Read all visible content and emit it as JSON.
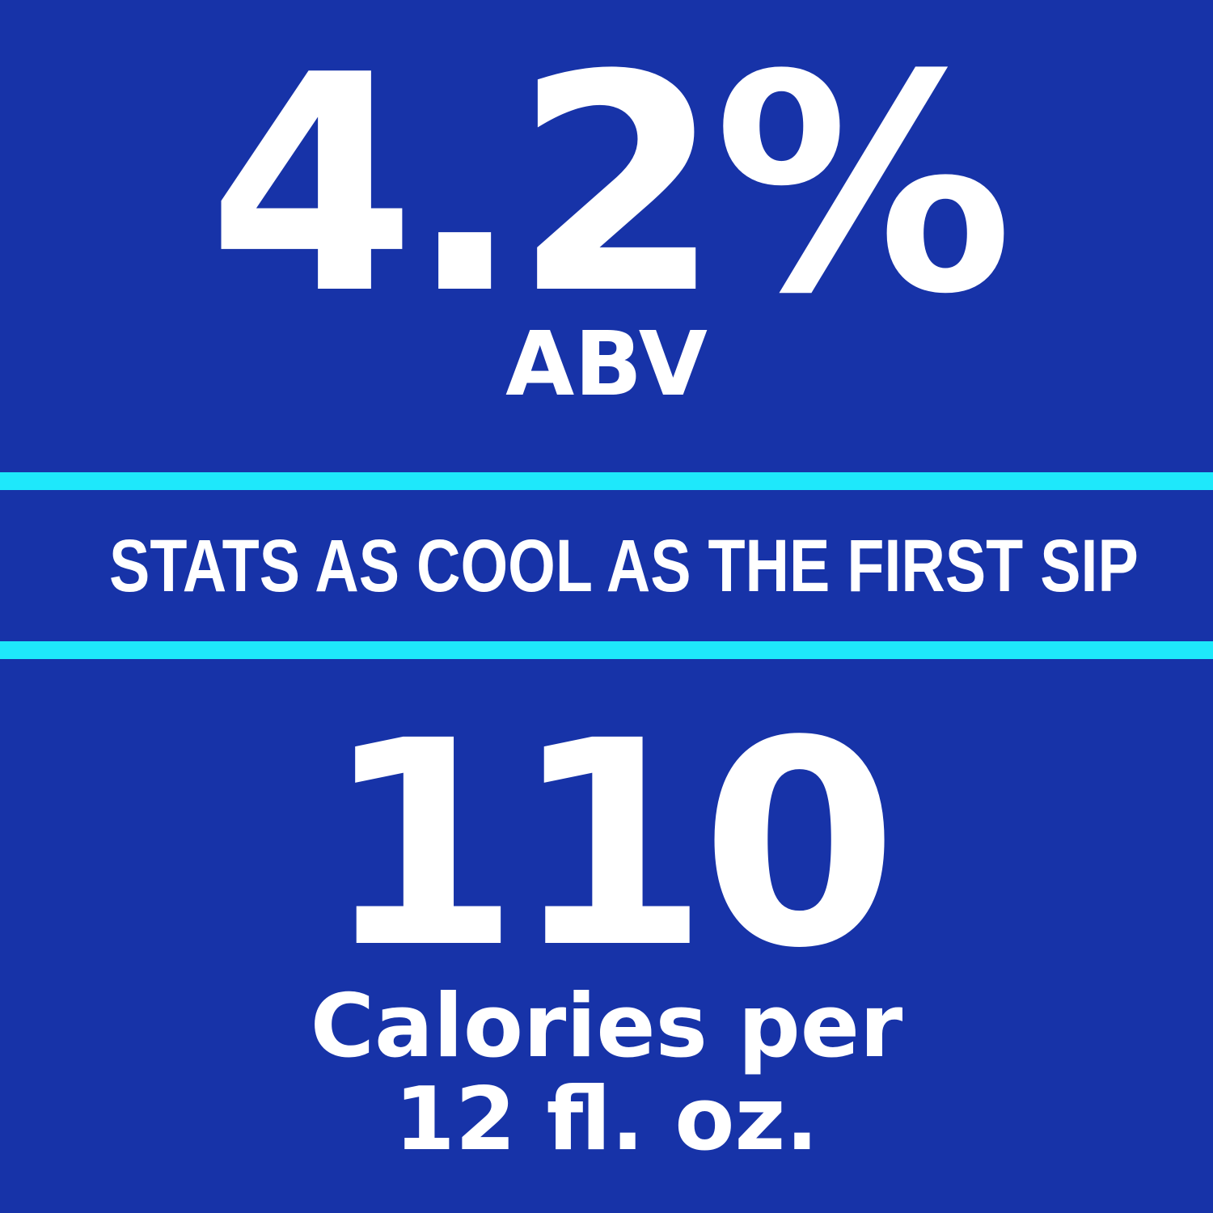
{
  "abv": {
    "value": "4.2%",
    "label": "ABV"
  },
  "banner": "STATS AS COOL AS THE FIRST SIP",
  "calories": {
    "value": "110",
    "label_line1": "Calories per",
    "label_line2": "12 fl. oz."
  }
}
